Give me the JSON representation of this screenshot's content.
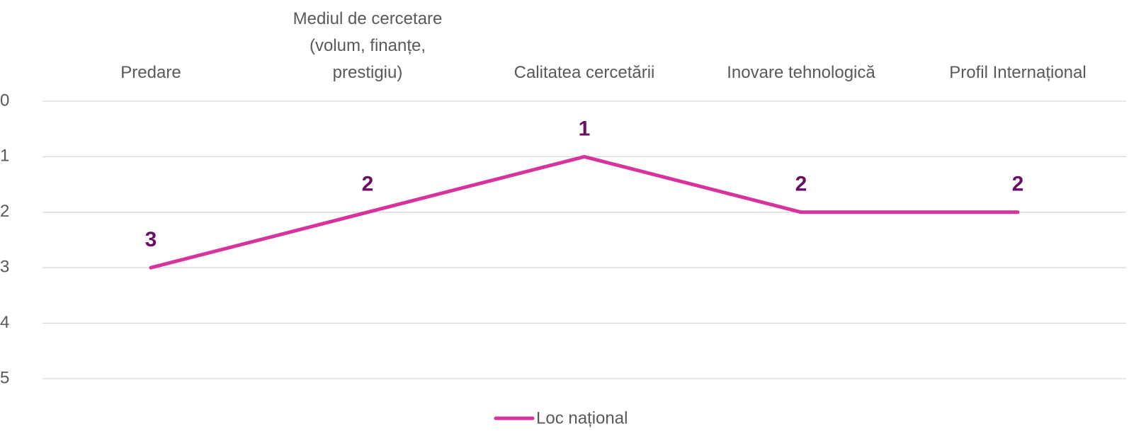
{
  "chart_data": {
    "type": "line",
    "categories": [
      "Predare",
      "Mediul de cercetare (volum, finanțe, prestigiu)",
      "Calitatea cercetării",
      "Inovare tehnologică",
      "Profil Internațional"
    ],
    "series": [
      {
        "name": "Loc național",
        "color": "#d6339c",
        "values": [
          3,
          2,
          1,
          2,
          2
        ]
      }
    ],
    "ylim": [
      0,
      5
    ],
    "yticks": [
      0,
      1,
      2,
      3,
      4,
      5
    ],
    "y_reversed": true,
    "grid": true,
    "legend": "bottom",
    "data_labels": true,
    "label_color": "#6b0f63",
    "x_axis_position": "top"
  }
}
